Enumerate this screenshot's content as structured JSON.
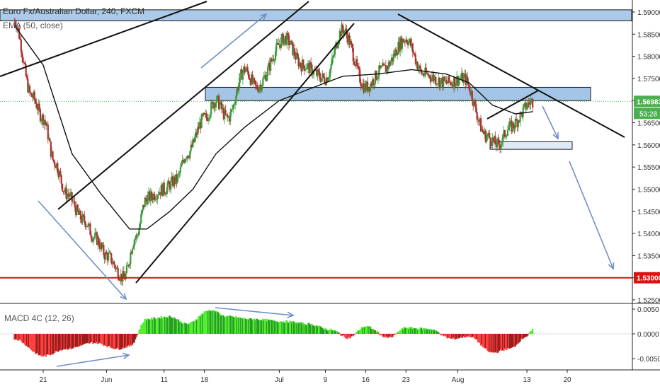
{
  "title": "Euro Fx/Australian Dollar, 240, FXCM",
  "ema_label": "EMA (50, close)",
  "macd_label": "MACD 4C (12, 26)",
  "colors": {
    "up_candle": "#3a9a3a",
    "down_candle": "#b03030",
    "ema_line": "#111111",
    "support_line": "#e01010",
    "zone_fill": "#8fb7e0",
    "zone_stroke": "#1a1a1a",
    "arrow": "#6f8fc8",
    "macd_pos_bright": "#55ee33",
    "macd_pos_dark": "#2b9a2b",
    "macd_neg_bright": "#ff4040",
    "macd_neg_dark": "#991f1f",
    "price_badge_bg": "#4caf50",
    "support_badge_bg": "#e01010"
  },
  "chart_data": [
    {
      "type": "candlestick",
      "symbol": "EURAUD",
      "x_ticks": [
        "21",
        "Jun",
        "11",
        "18",
        "Jul",
        "9",
        "16",
        "23",
        "Aug",
        "13",
        "20"
      ],
      "y_ticks": [
        "1.59000",
        "1.58500",
        "1.58000",
        "1.57500",
        "1.57000",
        "1.56500",
        "1.56000",
        "1.55500",
        "1.55000",
        "1.54500",
        "1.54000",
        "1.53500",
        "1.53000",
        "1.52500"
      ],
      "ylim": [
        1.5225,
        1.5925
      ],
      "approx_close_path": [
        {
          "x": "May 16",
          "y": 1.588
        },
        {
          "x": "May 19",
          "y": 1.571
        },
        {
          "x": "May 21",
          "y": 1.566
        },
        {
          "x": "May 23",
          "y": 1.556
        },
        {
          "x": "May 25",
          "y": 1.549
        },
        {
          "x": "May 28",
          "y": 1.543
        },
        {
          "x": "May 30",
          "y": 1.539
        },
        {
          "x": "Jun 1",
          "y": 1.535
        },
        {
          "x": "Jun 4",
          "y": 1.53
        },
        {
          "x": "Jun 6",
          "y": 1.539
        },
        {
          "x": "Jun 8",
          "y": 1.548
        },
        {
          "x": "Jun 11",
          "y": 1.55
        },
        {
          "x": "Jun 13",
          "y": 1.552
        },
        {
          "x": "Jun 15",
          "y": 1.558
        },
        {
          "x": "Jun 18",
          "y": 1.566
        },
        {
          "x": "Jun 20",
          "y": 1.57
        },
        {
          "x": "Jun 22",
          "y": 1.566
        },
        {
          "x": "Jun 25",
          "y": 1.577
        },
        {
          "x": "Jun 27",
          "y": 1.573
        },
        {
          "x": "Jul 2",
          "y": 1.584
        },
        {
          "x": "Jul 5",
          "y": 1.578
        },
        {
          "x": "Jul 9",
          "y": 1.575
        },
        {
          "x": "Jul 12",
          "y": 1.586
        },
        {
          "x": "Jul 16",
          "y": 1.573
        },
        {
          "x": "Jul 19",
          "y": 1.577
        },
        {
          "x": "Jul 23",
          "y": 1.584
        },
        {
          "x": "Jul 26",
          "y": 1.576
        },
        {
          "x": "Jul 30",
          "y": 1.574
        },
        {
          "x": "Aug 2",
          "y": 1.575
        },
        {
          "x": "Aug 6",
          "y": 1.562
        },
        {
          "x": "Aug 8",
          "y": 1.56
        },
        {
          "x": "Aug 10",
          "y": 1.564
        },
        {
          "x": "Aug 14",
          "y": 1.5698
        }
      ],
      "ema50_path": [
        {
          "x": "May 16",
          "y": 1.587
        },
        {
          "x": "May 21",
          "y": 1.578
        },
        {
          "x": "May 26",
          "y": 1.558
        },
        {
          "x": "May 31",
          "y": 1.549
        },
        {
          "x": "Jun 5",
          "y": 1.541
        },
        {
          "x": "Jun 8",
          "y": 1.541
        },
        {
          "x": "Jun 12",
          "y": 1.545
        },
        {
          "x": "Jun 16",
          "y": 1.55
        },
        {
          "x": "Jun 20",
          "y": 1.558
        },
        {
          "x": "Jun 25",
          "y": 1.564
        },
        {
          "x": "Jul 1",
          "y": 1.57
        },
        {
          "x": "Jul 7",
          "y": 1.573
        },
        {
          "x": "Jul 12",
          "y": 1.5755
        },
        {
          "x": "Jul 18",
          "y": 1.576
        },
        {
          "x": "Jul 24",
          "y": 1.577
        },
        {
          "x": "Jul 30",
          "y": 1.576
        },
        {
          "x": "Aug 3",
          "y": 1.574
        },
        {
          "x": "Aug 7",
          "y": 1.569
        },
        {
          "x": "Aug 11",
          "y": 1.567
        },
        {
          "x": "Aug 14",
          "y": 1.5675
        }
      ],
      "last_price": "1.56983",
      "countdown": "53:28",
      "support_level": "1.53000",
      "price_line_level": 1.56983
    },
    {
      "type": "bar",
      "title": "MACD 4C (12, 26)",
      "y_ticks": [
        "0.0050",
        "0.0000",
        "-0.0050"
      ],
      "ylim": [
        -0.0065,
        0.0055
      ],
      "values_approx": [
        {
          "x": "May 16",
          "y": -0.001
        },
        {
          "x": "May 21",
          "y": -0.0045
        },
        {
          "x": "May 25",
          "y": -0.003
        },
        {
          "x": "May 30",
          "y": -0.0018
        },
        {
          "x": "Jun 3",
          "y": -0.003
        },
        {
          "x": "Jun 5",
          "y": -0.0025
        },
        {
          "x": "Jun 8",
          "y": 0.003
        },
        {
          "x": "Jun 12",
          "y": 0.0035
        },
        {
          "x": "Jun 15",
          "y": 0.002
        },
        {
          "x": "Jun 19",
          "y": 0.0048
        },
        {
          "x": "Jun 22",
          "y": 0.0035
        },
        {
          "x": "Jun 26",
          "y": 0.003
        },
        {
          "x": "Jul 2",
          "y": 0.0025
        },
        {
          "x": "Jul 6",
          "y": 0.002
        },
        {
          "x": "Jul 10",
          "y": 0.0008
        },
        {
          "x": "Jul 13",
          "y": -0.0008
        },
        {
          "x": "Jul 16",
          "y": 0.0015
        },
        {
          "x": "Jul 20",
          "y": -0.0008
        },
        {
          "x": "Jul 23",
          "y": 0.0012
        },
        {
          "x": "Jul 27",
          "y": 0.001
        },
        {
          "x": "Jul 31",
          "y": -0.001
        },
        {
          "x": "Aug 3",
          "y": -0.0005
        },
        {
          "x": "Aug 7",
          "y": -0.0038
        },
        {
          "x": "Aug 10",
          "y": -0.003
        },
        {
          "x": "Aug 13",
          "y": -0.0005
        },
        {
          "x": "Aug 14",
          "y": 0.0008
        }
      ]
    }
  ]
}
